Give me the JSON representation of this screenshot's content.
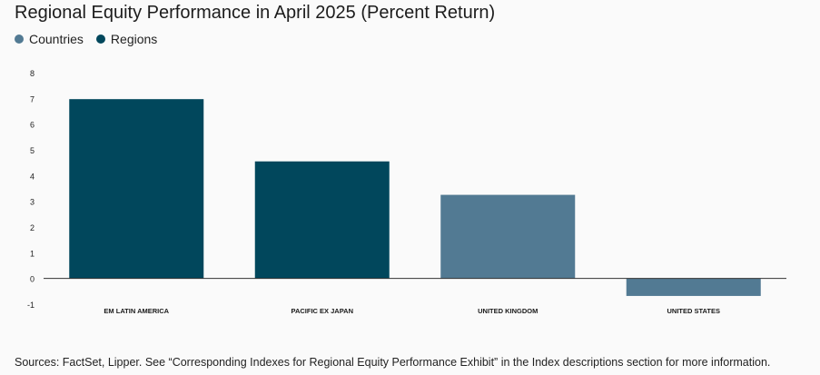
{
  "header": {
    "title": "Regional Equity Performance in April 2025 (Percent Return)"
  },
  "legend": {
    "items": [
      {
        "label": "Countries",
        "color": "#527a93"
      },
      {
        "label": "Regions",
        "color": "#01475c"
      }
    ]
  },
  "footer": {
    "source": "Sources: FactSet, Lipper. See “Corresponding Indexes for Regional Equity Performance Exhibit” in the Index descriptions section for more information."
  },
  "chart_data": {
    "type": "bar",
    "title": "Regional Equity Performance in April 2025 (Percent Return)",
    "xlabel": "",
    "ylabel": "",
    "ylim": [
      -1,
      8
    ],
    "yticks": [
      8,
      7,
      6,
      5,
      4,
      3,
      2,
      1,
      0,
      -1
    ],
    "grid": false,
    "legend_position": "top-left",
    "categories": [
      "EM LATIN AMERICA",
      "PACIFIC EX JAPAN",
      "UNITED KINGDOM",
      "UNITED STATES"
    ],
    "values": [
      6.97,
      4.55,
      3.25,
      -0.68
    ],
    "groups": [
      "Regions",
      "Regions",
      "Countries",
      "Countries"
    ],
    "colors": {
      "Regions": "#01475c",
      "Countries": "#527a93"
    }
  }
}
